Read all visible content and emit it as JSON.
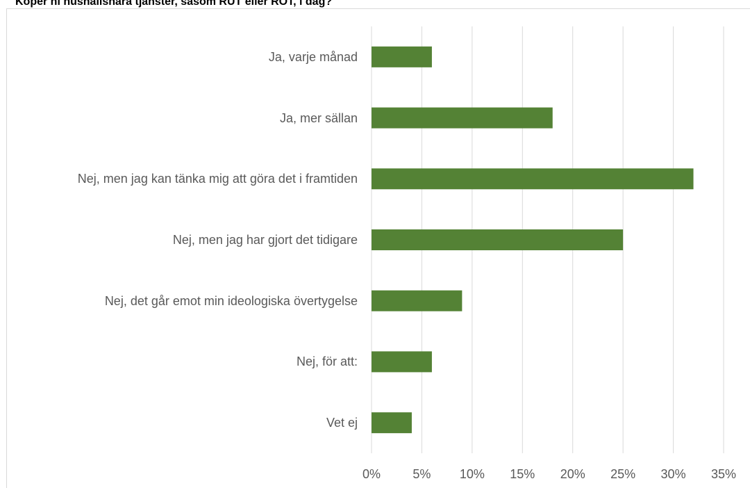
{
  "chart_data": {
    "type": "barh",
    "title": "Köper ni hushållsnära tjänster, såsom RUT eller ROT, i dag?",
    "categories": [
      "Ja, varje månad",
      "Ja, mer sällan",
      "Nej, men jag kan tänka mig att göra det i framtiden",
      "Nej, men jag har gjort det tidigare",
      "Nej, det går emot min ideologiska övertygelse",
      "Nej, för att:",
      "Vet ej"
    ],
    "values": [
      6,
      18,
      32,
      25,
      9,
      6,
      4
    ],
    "color": "#548235",
    "xlim": [
      0,
      35
    ],
    "xticks": [
      {
        "value": 0,
        "label": "0%"
      },
      {
        "value": 5,
        "label": "5%"
      },
      {
        "value": 10,
        "label": "10%"
      },
      {
        "value": 15,
        "label": "15%"
      },
      {
        "value": 20,
        "label": "20%"
      },
      {
        "value": 25,
        "label": "25%"
      },
      {
        "value": 30,
        "label": "30%"
      },
      {
        "value": 35,
        "label": "35%"
      }
    ],
    "grid": true
  }
}
